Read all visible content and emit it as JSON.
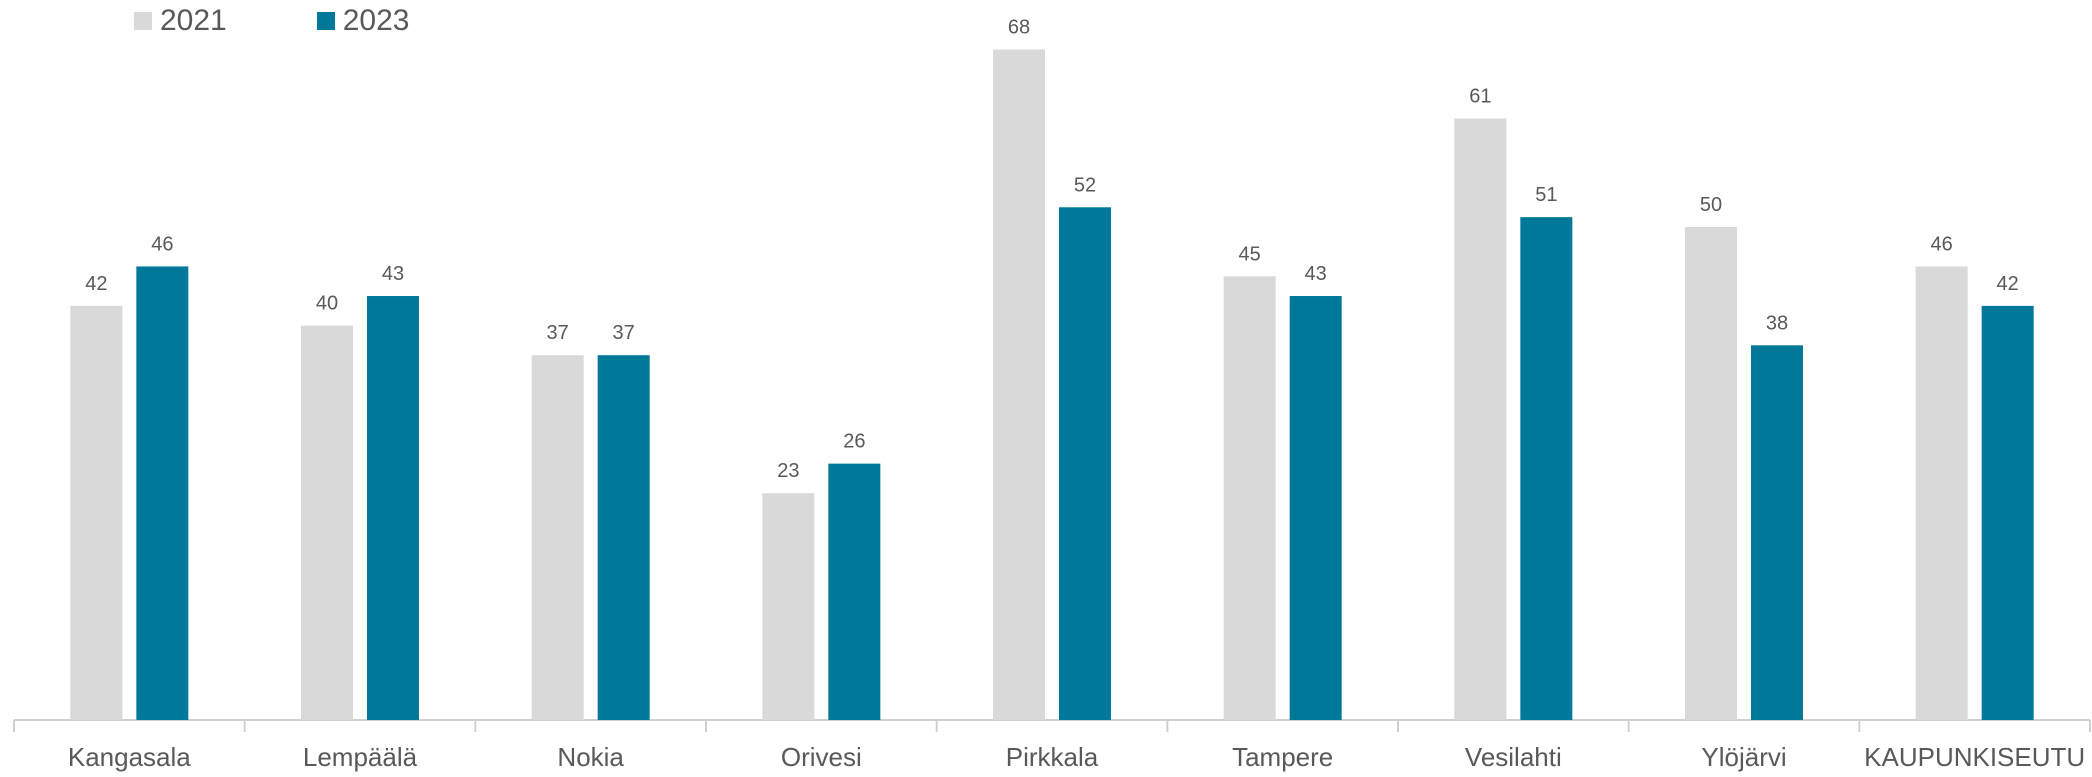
{
  "chart_data": {
    "type": "bar",
    "categories": [
      "Kangasala",
      "Lempäälä",
      "Nokia",
      "Orivesi",
      "Pirkkala",
      "Tampere",
      "Vesilahti",
      "Ylöjärvi",
      "KAUPUNKISEUTU"
    ],
    "series": [
      {
        "name": "2021",
        "color": "#d9d9d9",
        "values": [
          42,
          40,
          37,
          23,
          68,
          45,
          61,
          50,
          46
        ]
      },
      {
        "name": "2023",
        "color": "#00789a",
        "values": [
          46,
          43,
          37,
          26,
          52,
          43,
          51,
          38,
          42
        ]
      }
    ],
    "title": "",
    "xlabel": "",
    "ylabel": "",
    "ylim": [
      0,
      72
    ],
    "grid": false,
    "legend_position": "top-left",
    "data_labels": true
  }
}
